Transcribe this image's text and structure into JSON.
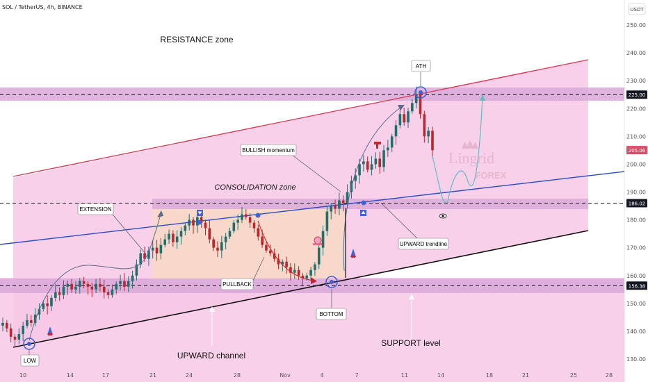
{
  "header": {
    "symbol_title": "SOL / TetherUS, 4h, BINANCE",
    "currency_button": "USDT"
  },
  "chart_data": {
    "type": "candlestick",
    "y_axis": {
      "ticks": [
        "250.00",
        "240.00",
        "230.00",
        "220.00",
        "210.00",
        "200.00",
        "190.00",
        "180.00",
        "170.00",
        "160.00",
        "150.00",
        "140.00",
        "130.00"
      ],
      "ylim": [
        126,
        255
      ],
      "price_tags": [
        {
          "value": "225.00",
          "style": "dark"
        },
        {
          "value": "205.06",
          "style": "red"
        },
        {
          "value": "186.02",
          "style": "dark"
        },
        {
          "value": "156.38",
          "style": "dark"
        }
      ]
    },
    "x_axis": {
      "ticks": [
        "10",
        "14",
        "17",
        "21",
        "24",
        "28",
        "Nov",
        "4",
        "7",
        "11",
        "14",
        "18",
        "21",
        "25",
        "28"
      ]
    },
    "horizontal_levels": [
      225.0,
      186.02,
      156.38
    ],
    "annotations": {
      "resistance": "RESISTANCE zone",
      "consolidation": "CONSOLIDATION zone",
      "extension": "EXTENSION",
      "pullback": "PULLBACK",
      "bullish": "BULLISH momentum",
      "upward_trendline": "UPWARD trendline",
      "upward_channel": "UPWARD channel",
      "support": "SUPPORT level",
      "low": "LOW",
      "bottom": "BOTTOM",
      "ath": "ATH"
    },
    "close_path": [
      143,
      141,
      138,
      137,
      139,
      142,
      144,
      143,
      146,
      148,
      150,
      149,
      152,
      154,
      153,
      156,
      157,
      155,
      156,
      158,
      157,
      156,
      155,
      157,
      156,
      154,
      153,
      155,
      157,
      158,
      156,
      158,
      160,
      164,
      168,
      166,
      169,
      170,
      168,
      171,
      173,
      175,
      172,
      174,
      176,
      178,
      180,
      178,
      181,
      179,
      177,
      173,
      170,
      169,
      172,
      174,
      176,
      179,
      180,
      182,
      181,
      179,
      177,
      174,
      171,
      169,
      168,
      166,
      164,
      165,
      163,
      161,
      162,
      160,
      159,
      160,
      162,
      164,
      170,
      176,
      183,
      185,
      184,
      187,
      186,
      190,
      194,
      196,
      200,
      201,
      198,
      200,
      202,
      199,
      205,
      206,
      210,
      214,
      218,
      215,
      219,
      222,
      225,
      218,
      210,
      212,
      205
    ]
  },
  "watermark": {
    "brand": "Lingrid",
    "sub": "FOREX"
  },
  "colors": {
    "background": "#ffffff",
    "pink_channel": "#f7c8e6",
    "zone_band": "#d9a8d9",
    "candle_up": "#1f6f6b",
    "candle_down": "#b9282d",
    "blue_line": "#2a4cc6",
    "red_line": "#d93a55",
    "black_line": "#111111",
    "current_price": "#e04a6a",
    "marker_blue": "#3d63d6"
  }
}
